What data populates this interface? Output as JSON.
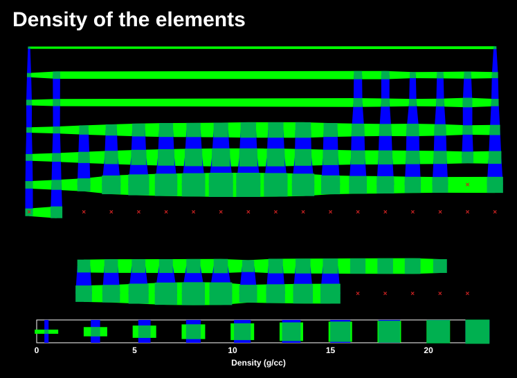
{
  "title": "Density of the elements",
  "chart_data": {
    "type": "periodic-table-glyphs",
    "title": "Density of the elements",
    "xlabel": "Density (g/cc)",
    "legend_ticks": [
      "0",
      "5",
      "10",
      "15",
      "20"
    ],
    "legend_values": [
      0.5,
      3,
      5.5,
      8,
      10.5,
      13,
      15.5,
      18,
      20.5,
      22.5
    ],
    "legend_range": [
      0,
      23
    ],
    "missing_marker": "×",
    "colors": {
      "horizontal": "#00ff00",
      "vertical": "#0000ff",
      "center": "#00b050",
      "missing": "#cc2222",
      "background": "#000000",
      "text": "#ffffff"
    },
    "rows": [
      [
        0.1,
        null,
        null,
        null,
        null,
        null,
        null,
        null,
        null,
        null,
        null,
        null,
        null,
        null,
        null,
        null,
        null,
        0.2
      ],
      [
        0.5,
        1.8,
        null,
        null,
        null,
        null,
        null,
        null,
        null,
        null,
        null,
        null,
        2.3,
        2.3,
        1.2,
        1.4,
        1.7,
        1.2
      ],
      [
        1.0,
        1.7,
        null,
        null,
        null,
        null,
        null,
        null,
        null,
        null,
        null,
        null,
        2.7,
        2.3,
        1.8,
        2.1,
        3.2,
        1.8
      ],
      [
        0.9,
        1.6,
        3.0,
        4.5,
        6.1,
        7.2,
        7.4,
        7.9,
        8.9,
        8.9,
        9.0,
        7.1,
        5.9,
        5.3,
        5.7,
        4.8,
        3.1,
        3.7
      ],
      [
        1.5,
        2.6,
        4.5,
        6.5,
        8.6,
        10.2,
        11.5,
        12.4,
        12.4,
        12.0,
        10.5,
        8.7,
        7.3,
        7.3,
        6.7,
        6.2,
        4.9,
        5.9
      ],
      [
        1.9,
        3.5,
        6.2,
        13.3,
        16.7,
        19.3,
        21.0,
        22.6,
        22.6,
        21.5,
        19.3,
        13.5,
        11.9,
        11.3,
        9.8,
        9.3,
        null,
        9.7
      ],
      [
        2.0,
        5.0,
        null,
        null,
        null,
        null,
        null,
        null,
        null,
        null,
        null,
        null,
        null,
        null,
        null,
        null,
        null,
        null
      ]
    ],
    "lanthanides": [
      6.1,
      6.8,
      6.8,
      7.0,
      7.3,
      7.5,
      5.2,
      7.9,
      8.2,
      8.5,
      8.8,
      9.1,
      9.3,
      7.0
    ],
    "actinides": [
      10.1,
      11.7,
      15.4,
      19.1,
      20.4,
      19.8,
      12.0,
      13.5,
      14.8,
      15.1,
      null,
      null,
      null,
      null,
      null
    ]
  }
}
